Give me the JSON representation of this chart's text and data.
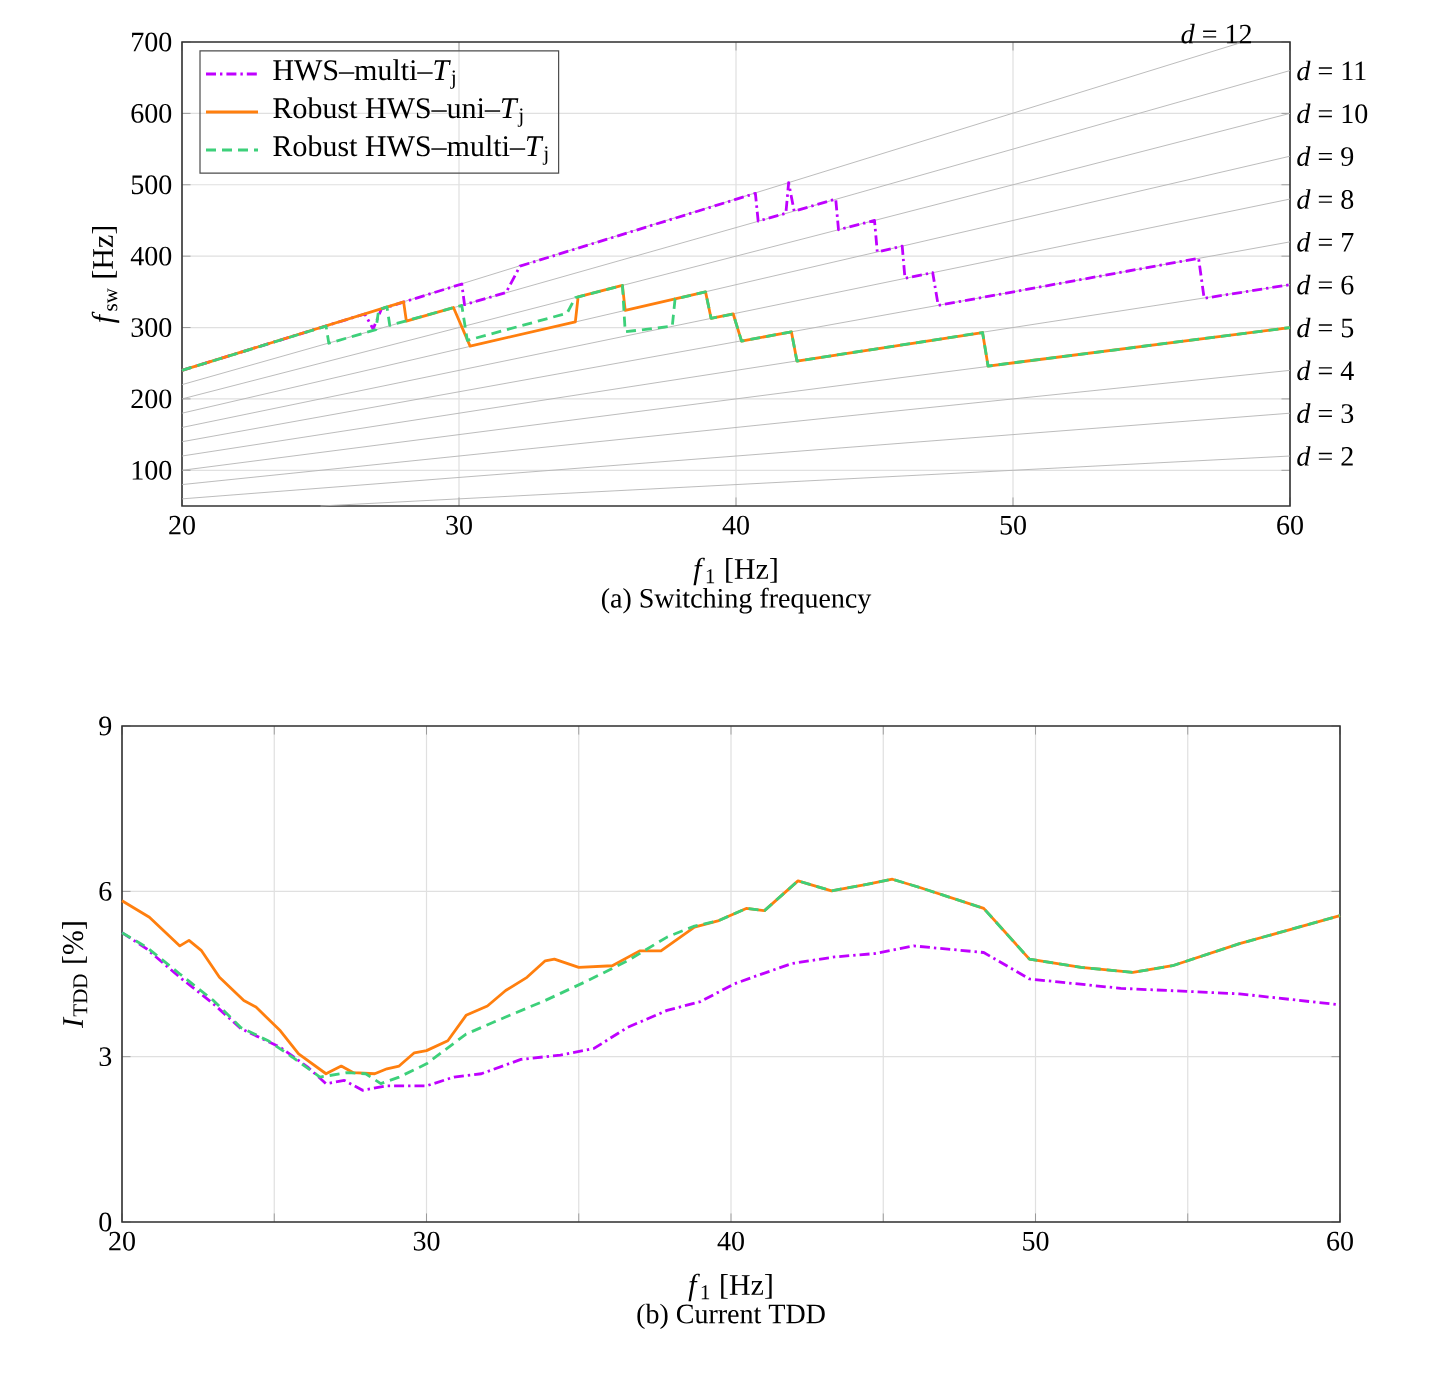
{
  "chart_data": [
    {
      "type": "line",
      "title": "(a) Switching frequency",
      "xlabel": "*f*$_{1}$ [Hz]",
      "ylabel": "*f*$_{sw}$ [Hz]",
      "xlim": [
        20,
        60
      ],
      "ylim": [
        50,
        700
      ],
      "xticks": [
        20,
        30,
        40,
        50,
        60
      ],
      "yticks": [
        100,
        200,
        300,
        400,
        500,
        600,
        700
      ],
      "grid": true,
      "legend": "top left",
      "series": [
        {
          "name": "*d* = 2",
          "color": "#b4b4b4",
          "x": [
            25,
            60
          ],
          "values": [
            50,
            120
          ]
        },
        {
          "name": "*d* = 3",
          "color": "#b4b4b4",
          "x": [
            20,
            60
          ],
          "values": [
            60,
            180
          ]
        },
        {
          "name": "*d* = 4",
          "color": "#b4b4b4",
          "x": [
            20,
            60
          ],
          "values": [
            80,
            240
          ]
        },
        {
          "name": "*d* = 5",
          "color": "#b4b4b4",
          "x": [
            20,
            60
          ],
          "values": [
            100,
            300
          ]
        },
        {
          "name": "*d* = 6",
          "color": "#b4b4b4",
          "x": [
            20,
            60
          ],
          "values": [
            120,
            360
          ]
        },
        {
          "name": "*d* = 7",
          "color": "#b4b4b4",
          "x": [
            20,
            60
          ],
          "values": [
            140,
            420
          ]
        },
        {
          "name": "*d* = 8",
          "color": "#b4b4b4",
          "x": [
            20,
            60
          ],
          "values": [
            160,
            480
          ]
        },
        {
          "name": "*d* = 9",
          "color": "#b4b4b4",
          "x": [
            20,
            60
          ],
          "values": [
            180,
            540
          ]
        },
        {
          "name": "*d* = 10",
          "color": "#b4b4b4",
          "x": [
            20,
            60
          ],
          "values": [
            200,
            600
          ]
        },
        {
          "name": "*d* = 11",
          "color": "#b4b4b4",
          "x": [
            20,
            60
          ],
          "values": [
            220,
            660
          ]
        },
        {
          "name": "*d* = 12",
          "color": "#b4b4b4",
          "x": [
            20,
            58.3
          ],
          "values": [
            240,
            700
          ]
        },
        {
          "name": "HWS–multi–*T*$_{j}$",
          "color": "#bf00ff",
          "line_style": "dashdot",
          "x": [
            20,
            26.6,
            26.9,
            27.2,
            30.1,
            30.2,
            31.7,
            32.2,
            40.7,
            40.8,
            41.8,
            41.9,
            42.1,
            43.6,
            43.7,
            45.0,
            45.1,
            46.0,
            46.1,
            47.1,
            47.3,
            56.7,
            56.9,
            60
          ],
          "values": [
            240,
            319,
            298,
            326,
            361,
            332,
            349,
            386,
            488,
            449,
            460,
            503,
            463,
            480,
            437,
            450,
            406,
            414,
            369,
            377,
            331,
            397,
            341,
            360
          ]
        },
        {
          "name": "Robust HWS–uni–*T*$_{j}$",
          "color": "#ff7f0e",
          "line_style": "solid",
          "x": [
            20,
            28.0,
            28.1,
            29.8,
            30.4,
            34.2,
            34.3,
            35.9,
            36.0,
            38.9,
            39.1,
            39.9,
            40.2,
            42.0,
            42.2,
            48.9,
            49.1,
            60
          ],
          "values": [
            240,
            336,
            309,
            328,
            274,
            308,
            343,
            359,
            324,
            350,
            313,
            319,
            281,
            294,
            253,
            293,
            246,
            300
          ]
        },
        {
          "name": "Robust HWS–multi–*T*$_{j}$",
          "color": "#3dd07a",
          "line_style": "dashed",
          "x": [
            20,
            25.2,
            25.3,
            27.0,
            27.1,
            27.4,
            27.5,
            30.1,
            30.3,
            33.9,
            34.2,
            35.9,
            36.0,
            37.7,
            37.8,
            38.9,
            39.1,
            39.9,
            40.2,
            42.0,
            42.2,
            48.9,
            49.1,
            60
          ],
          "values": [
            240,
            302,
            278,
            297,
            325,
            329,
            303,
            331,
            282,
            320,
            342,
            359,
            294,
            302,
            340,
            350,
            313,
            319,
            281,
            294,
            253,
            293,
            246,
            300
          ]
        }
      ]
    },
    {
      "type": "line",
      "title": "(b) Current TDD",
      "xlabel": "*f*$_{1}$ [Hz]",
      "ylabel": "*I*$_{TDD}$ [%]",
      "xlim": [
        20,
        60
      ],
      "ylim": [
        0,
        9
      ],
      "xticks": [
        20,
        {
          "value": 25,
          "label": null
        },
        30,
        {
          "value": 35,
          "label": null
        },
        40,
        {
          "value": 45,
          "label": null
        },
        50,
        {
          "value": 55,
          "label": null
        },
        60
      ],
      "yticks": [
        0,
        3,
        6,
        9
      ],
      "grid": true,
      "series": [
        {
          "color": "#bf00ff",
          "line_style": "dashdot",
          "x": [
            20,
            20.8,
            21.9,
            23.0,
            23.9,
            25.2,
            26.1,
            26.7,
            27.3,
            27.9,
            28.7,
            30.0,
            30.9,
            31.8,
            33.1,
            34.4,
            35.5,
            36.6,
            37.9,
            39.0,
            40.1,
            40.7,
            42.0,
            43.4,
            44.7,
            46.0,
            48.3,
            49.8,
            52.8,
            56.7,
            60
          ],
          "values": [
            5.25,
            4.96,
            4.44,
            3.96,
            3.51,
            3.17,
            2.81,
            2.51,
            2.57,
            2.39,
            2.47,
            2.47,
            2.63,
            2.69,
            2.95,
            3.03,
            3.15,
            3.53,
            3.84,
            4.0,
            4.32,
            4.44,
            4.69,
            4.81,
            4.87,
            5.01,
            4.89,
            4.41,
            4.24,
            4.14,
            3.94
          ]
        },
        {
          "color": "#ff7f0e",
          "line_style": "solid",
          "x": [
            20,
            20.9,
            21.9,
            22.2,
            22.6,
            23.2,
            24.0,
            24.4,
            25.2,
            25.8,
            26.7,
            27.2,
            27.6,
            28.3,
            28.7,
            29.1,
            29.6,
            30.0,
            30.7,
            31.3,
            32.0,
            32.6,
            33.3,
            33.9,
            34.2,
            35.0,
            36.1,
            37.0,
            37.7,
            38.8,
            39.6,
            40.5,
            41.1,
            42.2,
            43.3,
            44.5,
            45.3,
            46.2,
            48.3,
            49.8,
            51.5,
            53.2,
            54.5,
            56.7,
            60
          ],
          "values": [
            5.83,
            5.53,
            5.01,
            5.11,
            4.93,
            4.44,
            4.02,
            3.9,
            3.47,
            3.05,
            2.69,
            2.83,
            2.71,
            2.69,
            2.78,
            2.83,
            3.07,
            3.11,
            3.29,
            3.75,
            3.92,
            4.2,
            4.44,
            4.74,
            4.77,
            4.62,
            4.65,
            4.92,
            4.92,
            5.35,
            5.47,
            5.69,
            5.65,
            6.19,
            6.01,
            6.13,
            6.22,
            6.07,
            5.69,
            4.77,
            4.62,
            4.53,
            4.65,
            5.05,
            5.56
          ]
        },
        {
          "color": "#3dd07a",
          "line_style": "dashed",
          "x": [
            20,
            20.8,
            21.9,
            23.0,
            23.9,
            24.8,
            25.6,
            26.5,
            27.4,
            28.0,
            28.5,
            29.1,
            30.0,
            31.3,
            32.6,
            33.9,
            35.3,
            36.6,
            37.9,
            38.8,
            39.6,
            40.5,
            41.1,
            42.2,
            43.3,
            44.5,
            45.3,
            46.2,
            48.3,
            49.8,
            51.5,
            53.2,
            54.5,
            56.7,
            60
          ],
          "values": [
            5.25,
            4.99,
            4.5,
            4.02,
            3.53,
            3.29,
            2.99,
            2.63,
            2.71,
            2.69,
            2.51,
            2.63,
            2.87,
            3.41,
            3.72,
            4.02,
            4.38,
            4.74,
            5.17,
            5.37,
            5.47,
            5.69,
            5.65,
            6.19,
            6.01,
            6.13,
            6.22,
            6.07,
            5.69,
            4.77,
            4.62,
            4.53,
            4.65,
            5.05,
            5.56
          ]
        }
      ]
    }
  ]
}
